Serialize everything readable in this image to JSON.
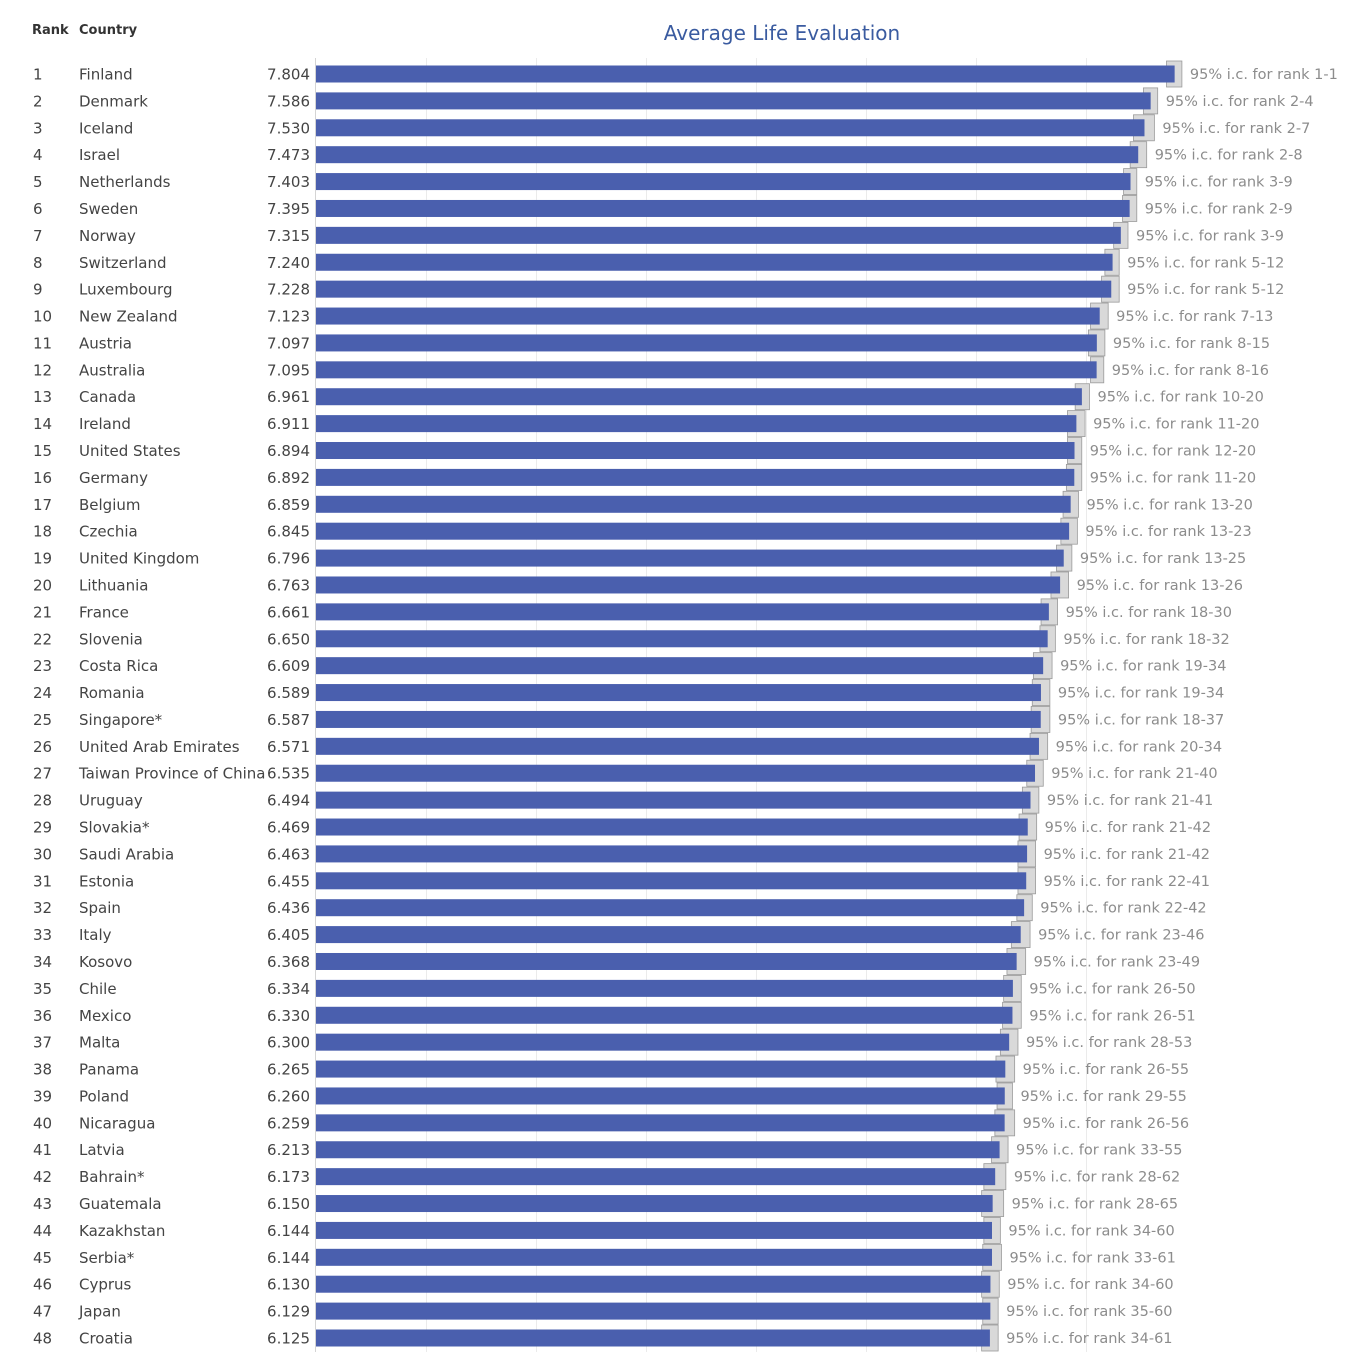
{
  "header": {
    "rank_label": "Rank",
    "country_label": "Country"
  },
  "chart_data": {
    "type": "bar",
    "orientation": "horizontal",
    "title": "Average Life Evaluation",
    "xlim": [
      0,
      7.98
    ],
    "grid": true,
    "colors": {
      "bar": "#4a5fae",
      "ci_band": "#d9d9d9",
      "ci_outline": "#9a9a9a",
      "grid": "#ebebeb"
    },
    "rows": [
      {
        "rank": "1",
        "country": "Finland",
        "value": 7.804,
        "value_label": "7.804",
        "ci_low": 7.73,
        "ci_high": 7.87,
        "ci_label": "95% i.c. for rank 1-1"
      },
      {
        "rank": "2",
        "country": "Denmark",
        "value": 7.586,
        "value_label": "7.586",
        "ci_low": 7.52,
        "ci_high": 7.65,
        "ci_label": "95% i.c. for rank 2-4"
      },
      {
        "rank": "3",
        "country": "Iceland",
        "value": 7.53,
        "value_label": "7.530",
        "ci_low": 7.43,
        "ci_high": 7.62,
        "ci_label": "95% i.c. for rank 2-7"
      },
      {
        "rank": "4",
        "country": "Israel",
        "value": 7.473,
        "value_label": "7.473",
        "ci_low": 7.4,
        "ci_high": 7.55,
        "ci_label": "95% i.c. for rank 2-8"
      },
      {
        "rank": "5",
        "country": "Netherlands",
        "value": 7.403,
        "value_label": "7.403",
        "ci_low": 7.34,
        "ci_high": 7.46,
        "ci_label": "95% i.c. for rank 3-9"
      },
      {
        "rank": "6",
        "country": "Sweden",
        "value": 7.395,
        "value_label": "7.395",
        "ci_low": 7.33,
        "ci_high": 7.46,
        "ci_label": "95% i.c. for rank 2-9"
      },
      {
        "rank": "7",
        "country": "Norway",
        "value": 7.315,
        "value_label": "7.315",
        "ci_low": 7.25,
        "ci_high": 7.38,
        "ci_label": "95% i.c. for rank 3-9"
      },
      {
        "rank": "8",
        "country": "Switzerland",
        "value": 7.24,
        "value_label": "7.240",
        "ci_low": 7.17,
        "ci_high": 7.3,
        "ci_label": "95% i.c. for rank 5-12"
      },
      {
        "rank": "9",
        "country": "Luxembourg",
        "value": 7.228,
        "value_label": "7.228",
        "ci_low": 7.14,
        "ci_high": 7.3,
        "ci_label": "95% i.c. for rank 5-12"
      },
      {
        "rank": "10",
        "country": "New Zealand",
        "value": 7.123,
        "value_label": "7.123",
        "ci_low": 7.04,
        "ci_high": 7.2,
        "ci_label": "95% i.c. for rank 7-13"
      },
      {
        "rank": "11",
        "country": "Austria",
        "value": 7.097,
        "value_label": "7.097",
        "ci_low": 7.02,
        "ci_high": 7.17,
        "ci_label": "95% i.c. for rank 8-15"
      },
      {
        "rank": "12",
        "country": "Australia",
        "value": 7.095,
        "value_label": "7.095",
        "ci_low": 7.04,
        "ci_high": 7.16,
        "ci_label": "95% i.c. for rank 8-16"
      },
      {
        "rank": "13",
        "country": "Canada",
        "value": 6.961,
        "value_label": "6.961",
        "ci_low": 6.9,
        "ci_high": 7.03,
        "ci_label": "95% i.c. for rank 10-20"
      },
      {
        "rank": "14",
        "country": "Ireland",
        "value": 6.911,
        "value_label": "6.911",
        "ci_low": 6.83,
        "ci_high": 6.99,
        "ci_label": "95% i.c. for rank 11-20"
      },
      {
        "rank": "15",
        "country": "United States",
        "value": 6.894,
        "value_label": "6.894",
        "ci_low": 6.83,
        "ci_high": 6.96,
        "ci_label": "95% i.c. for rank 12-20"
      },
      {
        "rank": "16",
        "country": "Germany",
        "value": 6.892,
        "value_label": "6.892",
        "ci_low": 6.82,
        "ci_high": 6.96,
        "ci_label": "95% i.c. for rank 11-20"
      },
      {
        "rank": "17",
        "country": "Belgium",
        "value": 6.859,
        "value_label": "6.859",
        "ci_low": 6.79,
        "ci_high": 6.93,
        "ci_label": "95% i.c. for rank 13-20"
      },
      {
        "rank": "18",
        "country": "Czechia",
        "value": 6.845,
        "value_label": "6.845",
        "ci_low": 6.77,
        "ci_high": 6.92,
        "ci_label": "95% i.c. for rank 13-23"
      },
      {
        "rank": "19",
        "country": "United Kingdom",
        "value": 6.796,
        "value_label": "6.796",
        "ci_low": 6.73,
        "ci_high": 6.87,
        "ci_label": "95% i.c. for rank 13-25"
      },
      {
        "rank": "20",
        "country": "Lithuania",
        "value": 6.763,
        "value_label": "6.763",
        "ci_low": 6.68,
        "ci_high": 6.84,
        "ci_label": "95% i.c. for rank 13-26"
      },
      {
        "rank": "21",
        "country": "France",
        "value": 6.661,
        "value_label": "6.661",
        "ci_low": 6.59,
        "ci_high": 6.74,
        "ci_label": "95% i.c. for rank 18-30"
      },
      {
        "rank": "22",
        "country": "Slovenia",
        "value": 6.65,
        "value_label": "6.650",
        "ci_low": 6.58,
        "ci_high": 6.72,
        "ci_label": "95% i.c. for rank 18-32"
      },
      {
        "rank": "23",
        "country": "Costa Rica",
        "value": 6.609,
        "value_label": "6.609",
        "ci_low": 6.52,
        "ci_high": 6.69,
        "ci_label": "95% i.c. for rank 19-34"
      },
      {
        "rank": "24",
        "country": "Romania",
        "value": 6.589,
        "value_label": "6.589",
        "ci_low": 6.51,
        "ci_high": 6.67,
        "ci_label": "95% i.c. for rank 19-34"
      },
      {
        "rank": "25",
        "country": "Singapore*",
        "value": 6.587,
        "value_label": "6.587",
        "ci_low": 6.5,
        "ci_high": 6.67,
        "ci_label": "95% i.c. for rank 18-37"
      },
      {
        "rank": "26",
        "country": "United Arab Emirates",
        "value": 6.571,
        "value_label": "6.571",
        "ci_low": 6.49,
        "ci_high": 6.65,
        "ci_label": "95% i.c. for rank 20-34"
      },
      {
        "rank": "27",
        "country": "Taiwan Province of China",
        "value": 6.535,
        "value_label": "6.535",
        "ci_low": 6.46,
        "ci_high": 6.61,
        "ci_label": "95% i.c. for rank 21-40"
      },
      {
        "rank": "28",
        "country": "Uruguay",
        "value": 6.494,
        "value_label": "6.494",
        "ci_low": 6.42,
        "ci_high": 6.57,
        "ci_label": "95% i.c. for rank 21-41"
      },
      {
        "rank": "29",
        "country": "Slovakia*",
        "value": 6.469,
        "value_label": "6.469",
        "ci_low": 6.39,
        "ci_high": 6.55,
        "ci_label": "95% i.c. for rank 21-42"
      },
      {
        "rank": "30",
        "country": "Saudi Arabia",
        "value": 6.463,
        "value_label": "6.463",
        "ci_low": 6.38,
        "ci_high": 6.54,
        "ci_label": "95% i.c. for rank 21-42"
      },
      {
        "rank": "31",
        "country": "Estonia",
        "value": 6.455,
        "value_label": "6.455",
        "ci_low": 6.38,
        "ci_high": 6.54,
        "ci_label": "95% i.c. for rank 22-41"
      },
      {
        "rank": "32",
        "country": "Spain",
        "value": 6.436,
        "value_label": "6.436",
        "ci_low": 6.37,
        "ci_high": 6.51,
        "ci_label": "95% i.c. for rank 22-42"
      },
      {
        "rank": "33",
        "country": "Italy",
        "value": 6.405,
        "value_label": "6.405",
        "ci_low": 6.32,
        "ci_high": 6.49,
        "ci_label": "95% i.c. for rank 23-46"
      },
      {
        "rank": "34",
        "country": "Kosovo",
        "value": 6.368,
        "value_label": "6.368",
        "ci_low": 6.28,
        "ci_high": 6.45,
        "ci_label": "95% i.c. for rank 23-49"
      },
      {
        "rank": "35",
        "country": "Chile",
        "value": 6.334,
        "value_label": "6.334",
        "ci_low": 6.25,
        "ci_high": 6.41,
        "ci_label": "95% i.c. for rank 26-50"
      },
      {
        "rank": "36",
        "country": "Mexico",
        "value": 6.33,
        "value_label": "6.330",
        "ci_low": 6.24,
        "ci_high": 6.41,
        "ci_label": "95% i.c. for rank 26-51"
      },
      {
        "rank": "37",
        "country": "Malta",
        "value": 6.3,
        "value_label": "6.300",
        "ci_low": 6.22,
        "ci_high": 6.38,
        "ci_label": "95% i.c. for rank 28-53"
      },
      {
        "rank": "38",
        "country": "Panama",
        "value": 6.265,
        "value_label": "6.265",
        "ci_low": 6.18,
        "ci_high": 6.35,
        "ci_label": "95% i.c. for rank 26-55"
      },
      {
        "rank": "39",
        "country": "Poland",
        "value": 6.26,
        "value_label": "6.260",
        "ci_low": 6.19,
        "ci_high": 6.33,
        "ci_label": "95% i.c. for rank 29-55"
      },
      {
        "rank": "40",
        "country": "Nicaragua",
        "value": 6.259,
        "value_label": "6.259",
        "ci_low": 6.17,
        "ci_high": 6.35,
        "ci_label": "95% i.c. for rank 26-56"
      },
      {
        "rank": "41",
        "country": "Latvia",
        "value": 6.213,
        "value_label": "6.213",
        "ci_low": 6.14,
        "ci_high": 6.29,
        "ci_label": "95% i.c. for rank 33-55"
      },
      {
        "rank": "42",
        "country": "Bahrain*",
        "value": 6.173,
        "value_label": "6.173",
        "ci_low": 6.07,
        "ci_high": 6.27,
        "ci_label": "95% i.c. for rank 28-62"
      },
      {
        "rank": "43",
        "country": "Guatemala",
        "value": 6.15,
        "value_label": "6.150",
        "ci_low": 6.05,
        "ci_high": 6.25,
        "ci_label": "95% i.c. for rank 28-65"
      },
      {
        "rank": "44",
        "country": "Kazakhstan",
        "value": 6.144,
        "value_label": "6.144",
        "ci_low": 6.07,
        "ci_high": 6.22,
        "ci_label": "95% i.c. for rank 34-60"
      },
      {
        "rank": "45",
        "country": "Serbia*",
        "value": 6.144,
        "value_label": "6.144",
        "ci_low": 6.06,
        "ci_high": 6.23,
        "ci_label": "95% i.c. for rank 33-61"
      },
      {
        "rank": "46",
        "country": "Cyprus",
        "value": 6.13,
        "value_label": "6.130",
        "ci_low": 6.05,
        "ci_high": 6.21,
        "ci_label": "95% i.c. for rank 34-60"
      },
      {
        "rank": "47",
        "country": "Japan",
        "value": 6.129,
        "value_label": "6.129",
        "ci_low": 6.06,
        "ci_high": 6.2,
        "ci_label": "95% i.c. for rank 35-60"
      },
      {
        "rank": "48",
        "country": "Croatia",
        "value": 6.125,
        "value_label": "6.125",
        "ci_low": 6.05,
        "ci_high": 6.2,
        "ci_label": "95% i.c. for rank 34-61"
      }
    ]
  }
}
